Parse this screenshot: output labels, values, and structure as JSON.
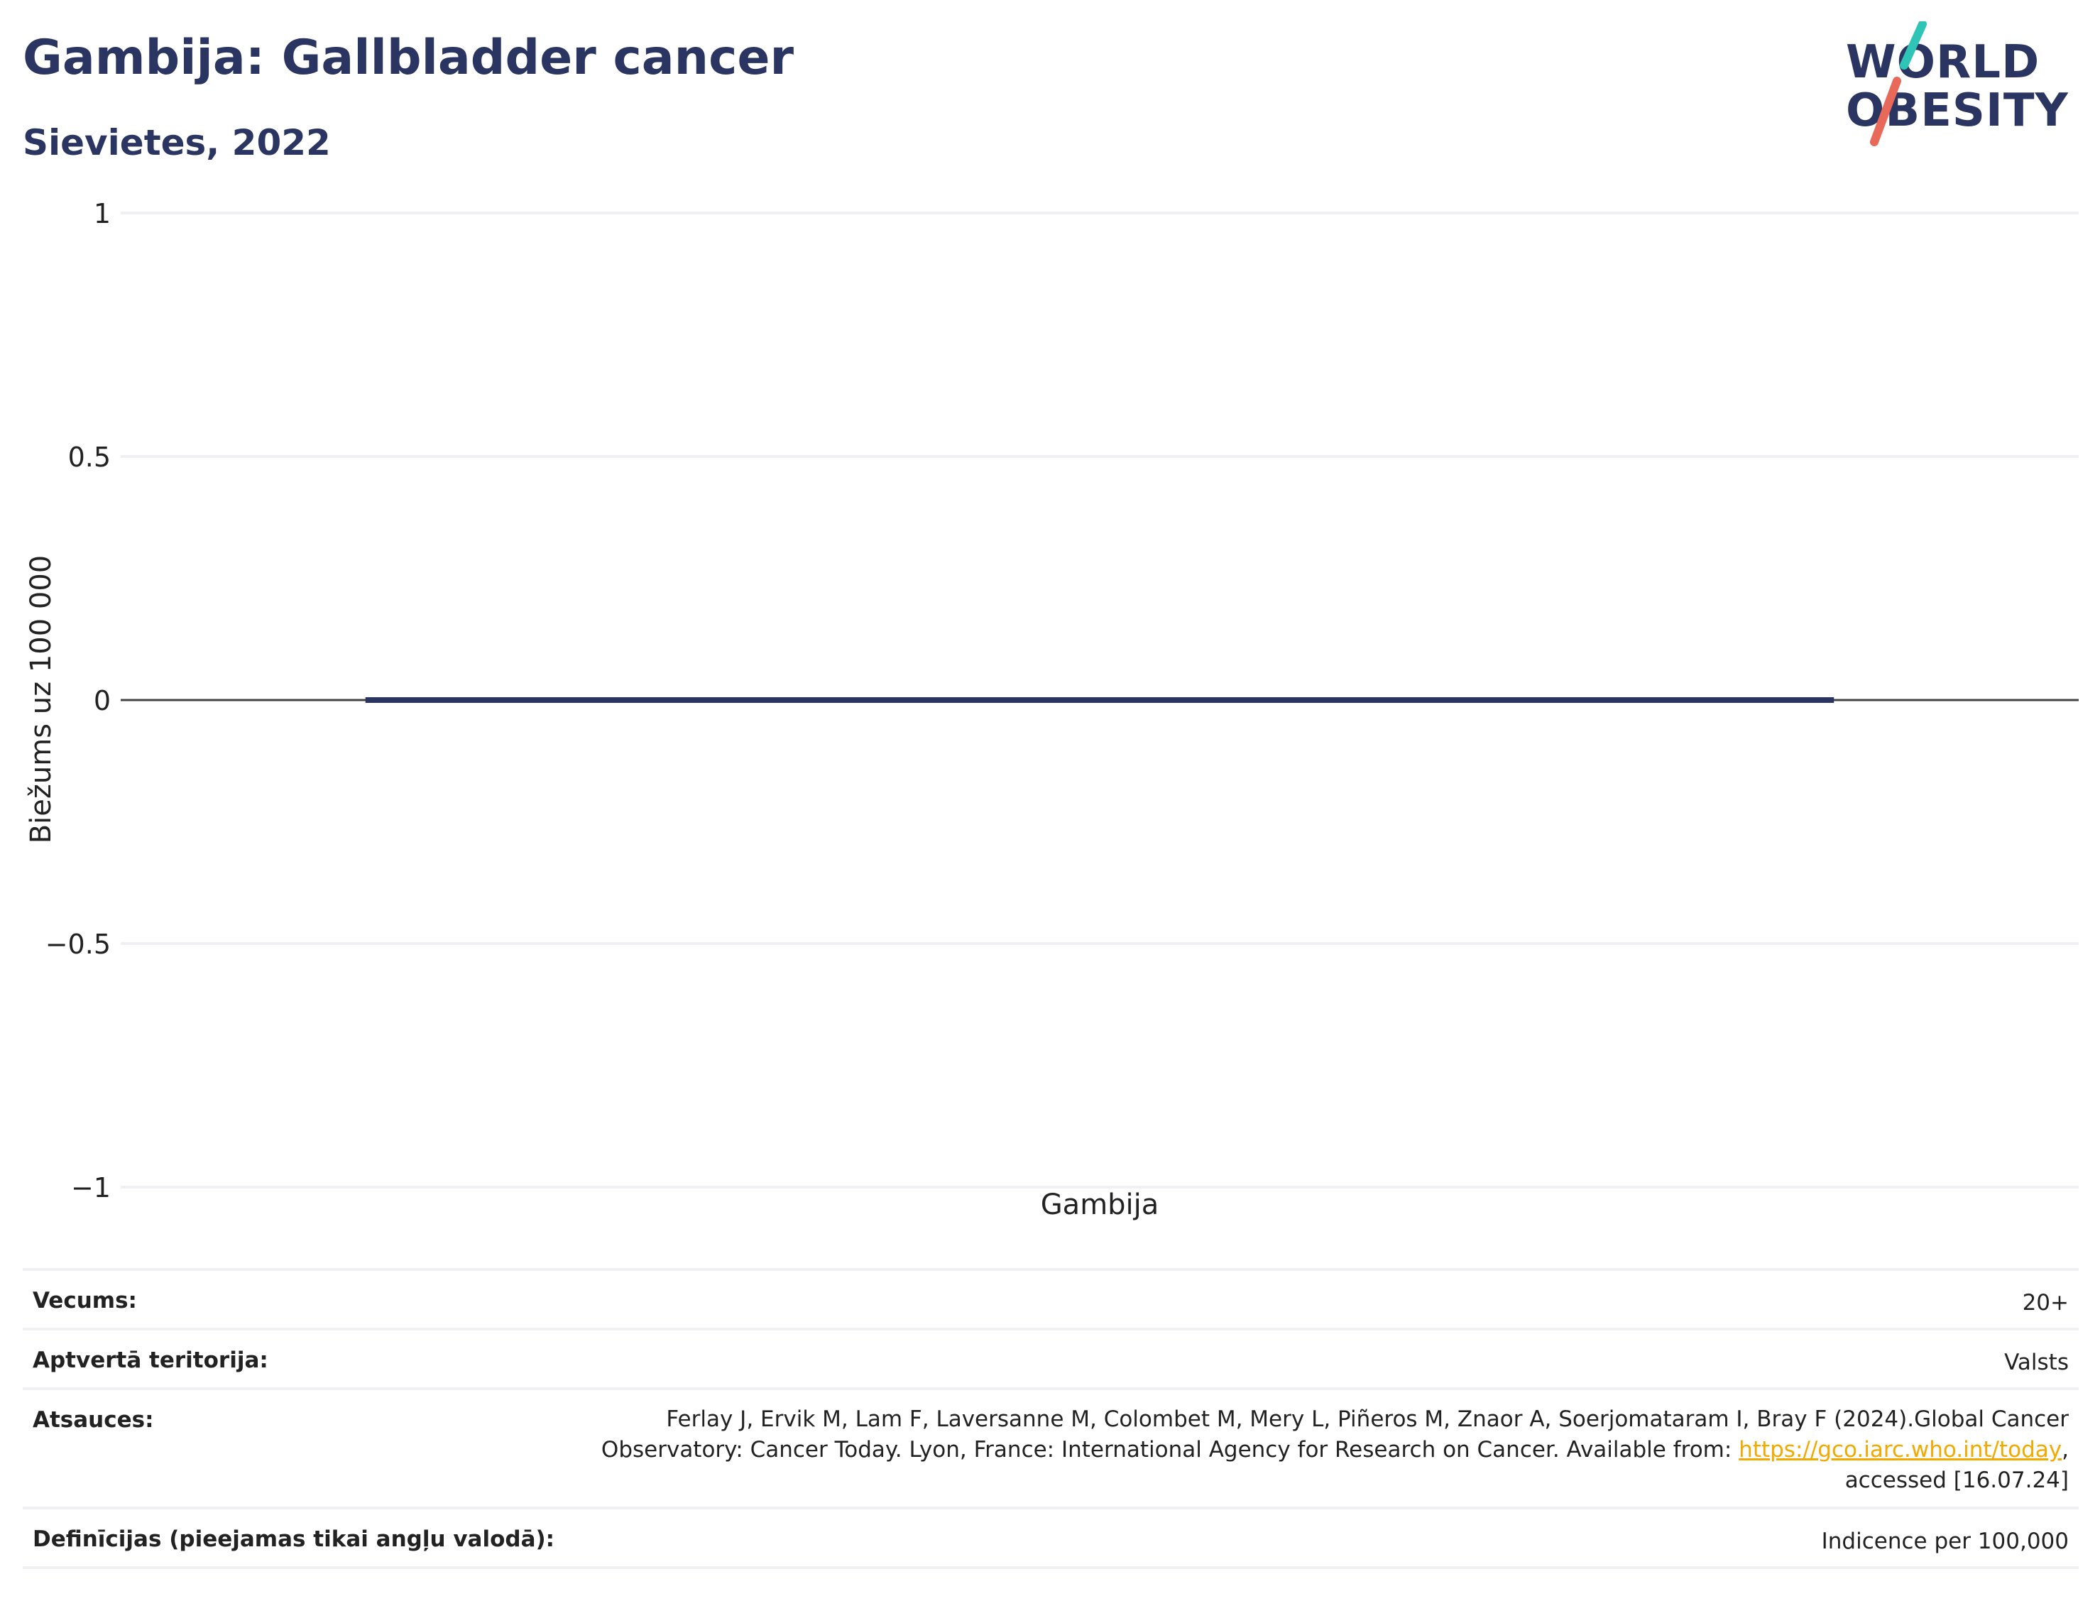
{
  "header": {
    "title": "Gambija: Gallbladder cancer",
    "subtitle": "Sievietes, 2022"
  },
  "logo": {
    "line1": "WORLD",
    "line2": "OBESITY",
    "slash_colors": [
      "#2ec4b6",
      "#e8685a"
    ]
  },
  "chart_data": {
    "type": "bar",
    "categories": [
      "Gambija"
    ],
    "series": [
      {
        "values": [
          0
        ]
      }
    ],
    "ylabel": "Biežums uz 100 000",
    "ylim": [
      -1,
      1
    ],
    "yticks": [
      1,
      0.5,
      0,
      -0.5,
      -1
    ],
    "ytick_labels": [
      "1",
      "0.5",
      "0",
      "−0.5",
      "−1"
    ],
    "grid": true,
    "bar_color": "#2b3562"
  },
  "info": {
    "age_label": "Vecums:",
    "age_value": "20+",
    "territory_label": "Aptvertā teritorija:",
    "territory_value": "Valsts",
    "refs_label": "Atsauces:",
    "refs_line1": "Ferlay J, Ervik M, Lam F, Laversanne M, Colombet M, Mery L, Piñeros M, Znaor A, Soerjomataram I, Bray F (2024).Global Cancer",
    "refs_line2_before": "Observatory: Cancer Today. Lyon, France: International Agency for Research on Cancer. Available from: ",
    "refs_link": "https://gco.iarc.who.int/today",
    "refs_line2_after": ",",
    "refs_line3": "accessed [16.07.24]",
    "defs_label": "Definīcijas (pieejamas tikai angļu valodā):",
    "defs_value": "Indicence per 100,000"
  }
}
